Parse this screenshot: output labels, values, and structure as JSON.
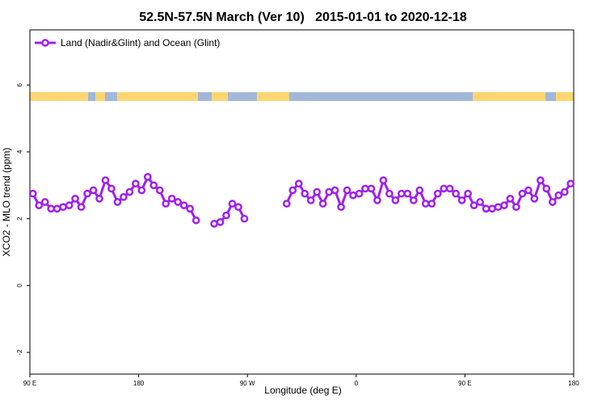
{
  "chart_data": {
    "type": "line",
    "title": "52.5N-57.5N March (Ver 10)   2015-01-01 to 2020-12-18",
    "x_label": "Longitude (deg E)",
    "y_label": "XCO2 - MLO trend (ppm)",
    "xlim": [
      90,
      540
    ],
    "ylim": [
      -2.65,
      7.65
    ],
    "xticks": [
      {
        "value": 90,
        "label": "90 E"
      },
      180,
      {
        "value": 270,
        "label": "90 W"
      },
      {
        "value": 360,
        "label": "0"
      },
      {
        "value": 450,
        "label": "90 E"
      },
      {
        "value": 540,
        "label": "180"
      }
    ],
    "yticks": [
      -2,
      0,
      2,
      4,
      6
    ],
    "legend": "top-left",
    "x": [
      92.5,
      97.5,
      102.5,
      107.5,
      112.5,
      117.5,
      122.5,
      127.5,
      132.5,
      137.5,
      142.5,
      147.5,
      152.5,
      157.5,
      162.5,
      167.5,
      172.5,
      177.5,
      182.5,
      187.5,
      192.5,
      197.5,
      202.5,
      207.5,
      212.5,
      217.5,
      222.5,
      227.5,
      232.5,
      237.5,
      242.5,
      247.5,
      252.5,
      257.5,
      262.5,
      267.5,
      272.5,
      277.5,
      282.5,
      287.5,
      292.5,
      297.5,
      302.5,
      307.5,
      312.5,
      317.5,
      322.5,
      327.5,
      332.5,
      337.5,
      342.5,
      347.5,
      352.5,
      357.5,
      362.5,
      367.5,
      372.5,
      377.5,
      382.5,
      387.5,
      392.5,
      397.5,
      402.5,
      407.5,
      412.5,
      417.5,
      422.5,
      427.5,
      432.5,
      437.5,
      442.5,
      447.5,
      452.5,
      457.5,
      462.5,
      467.5,
      472.5,
      477.5,
      482.5,
      487.5,
      492.5,
      497.5,
      502.5,
      507.5,
      512.5,
      517.5,
      522.5,
      527.5,
      532.5,
      537.5
    ],
    "series": [
      {
        "name": "Land (Nadir&Glint) and Ocean (Glint)",
        "color": "#a020f0",
        "values": [
          2.75,
          2.4,
          2.5,
          2.3,
          2.3,
          2.35,
          2.4,
          2.6,
          2.35,
          2.75,
          2.85,
          2.6,
          3.15,
          2.9,
          2.5,
          2.65,
          2.8,
          3.05,
          2.85,
          3.25,
          3.0,
          2.85,
          2.45,
          2.6,
          2.5,
          2.4,
          2.3,
          1.95,
          null,
          null,
          1.85,
          1.9,
          2.1,
          2.45,
          2.35,
          2.0,
          null,
          null,
          null,
          null,
          null,
          null,
          2.45,
          2.85,
          3.05,
          2.75,
          2.55,
          2.8,
          2.45,
          2.8,
          2.85,
          2.35,
          2.85,
          2.7,
          2.75,
          2.9,
          2.9,
          2.55,
          3.15,
          2.75,
          2.55,
          2.75,
          2.75,
          2.55,
          2.85,
          2.45,
          2.45,
          2.75,
          2.9,
          2.9,
          2.75,
          2.55,
          2.75,
          2.4,
          2.5,
          2.3,
          2.3,
          2.35,
          2.4,
          2.6,
          2.35,
          2.75,
          2.85,
          2.6,
          3.15,
          2.9,
          2.5,
          2.7,
          2.8,
          3.05
        ]
      }
    ]
  }
}
